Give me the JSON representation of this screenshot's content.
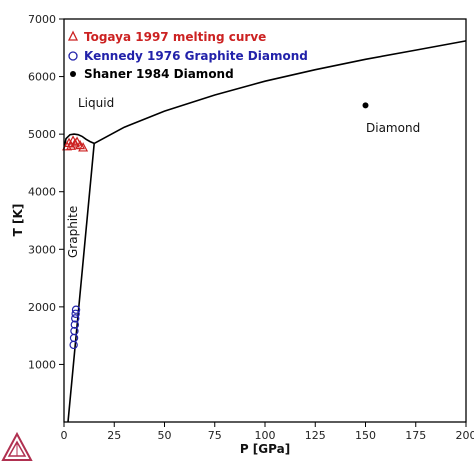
{
  "chart_data": {
    "type": "scatter",
    "title": "",
    "xlabel": "P [GPa]",
    "ylabel": "T [K]",
    "xlim": [
      0,
      200
    ],
    "ylim": [
      0,
      7000
    ],
    "xticks": [
      0,
      25,
      50,
      75,
      100,
      125,
      150,
      175,
      200
    ],
    "yticks": [
      1000,
      2000,
      3000,
      4000,
      5000,
      6000,
      7000
    ],
    "grid": false,
    "legend_position": "top-left",
    "legend": [
      {
        "label": "Togaya 1997 melting curve",
        "marker": "triangle-open",
        "color": "#cc2222"
      },
      {
        "label": "Kennedy 1976 Graphite Diamond",
        "marker": "circle-open",
        "color": "#2222aa"
      },
      {
        "label": "Shaner 1984 Diamond",
        "marker": "circle-filled",
        "color": "#000000"
      }
    ],
    "annotations": [
      "Liquid",
      "Graphite",
      "Diamond"
    ],
    "series": [
      {
        "name": "Togaya 1997 melting curve",
        "marker": "triangle-open",
        "color": "#cc2222",
        "x": [
          1.5,
          2.5,
          3.5,
          4.5,
          5.5,
          6.5,
          8.0,
          9.5
        ],
        "y": [
          4780,
          4840,
          4790,
          4880,
          4830,
          4860,
          4800,
          4760
        ]
      },
      {
        "name": "Kennedy 1976 Graphite Diamond",
        "marker": "circle-open",
        "color": "#2222aa",
        "x": [
          4.8,
          5.0,
          5.2,
          5.4,
          5.6,
          5.8,
          6.0
        ],
        "y": [
          1340,
          1460,
          1580,
          1690,
          1800,
          1880,
          1950
        ]
      },
      {
        "name": "Shaner 1984 Diamond",
        "marker": "circle-filled",
        "color": "#000000",
        "x": [
          150
        ],
        "y": [
          5500
        ]
      }
    ],
    "phase_boundaries": [
      {
        "region": "graphite-liquid",
        "x": [
          0,
          1,
          3,
          5,
          7,
          9,
          11,
          13,
          15
        ],
        "y": [
          4750,
          4920,
          4990,
          5000,
          4990,
          4960,
          4910,
          4870,
          4840
        ]
      },
      {
        "region": "graphite-diamond",
        "x": [
          2,
          15
        ],
        "y": [
          0,
          4840
        ]
      },
      {
        "region": "diamond-liquid",
        "x": [
          15,
          30,
          50,
          75,
          100,
          125,
          150,
          175,
          200
        ],
        "y": [
          4840,
          5120,
          5400,
          5680,
          5920,
          6120,
          6300,
          6460,
          6620
        ]
      }
    ]
  }
}
